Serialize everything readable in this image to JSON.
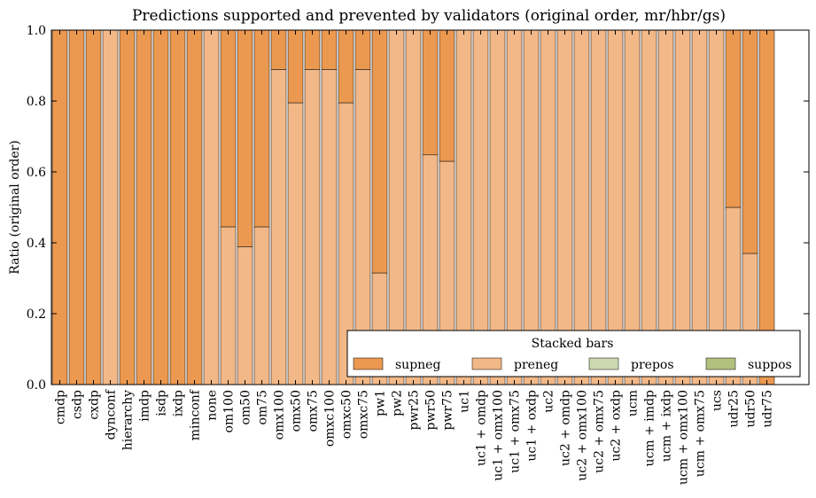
{
  "chart_data": {
    "type": "bar",
    "stacked": true,
    "title": "Predictions supported and prevented by validators (original order, mr/hbr/gs)",
    "xlabel": "",
    "ylabel": "Ratio (original order)",
    "ylim": [
      0,
      1.0
    ],
    "yticks": [
      "0.0",
      "0.2",
      "0.4",
      "0.6",
      "0.8",
      "1.0"
    ],
    "legend": {
      "title": "Stacked bars",
      "position": "bottom-right",
      "entries": [
        {
          "name": "supneg",
          "color": "#EB9950"
        },
        {
          "name": "preneg",
          "color": "#F2B887"
        },
        {
          "name": "prepos",
          "color": "#CCD9B0"
        },
        {
          "name": "suppos",
          "color": "#B2C07E"
        }
      ]
    },
    "categories": [
      "cmdp",
      "csdp",
      "cxdp",
      "dynconf",
      "hierarchy",
      "imdp",
      "isdp",
      "ixdp",
      "minconf",
      "none",
      "om100",
      "om50",
      "om75",
      "omx100",
      "omx50",
      "omx75",
      "omxc100",
      "omxc50",
      "omxc75",
      "pw1",
      "pw2",
      "pwr25",
      "pwr50",
      "pwr75",
      "uc1",
      "uc1 + omdp",
      "uc1 + omx100",
      "uc1 + omx75",
      "uc1 + oxdp",
      "uc2",
      "uc2 + omdp",
      "uc2 + omx100",
      "uc2 + omx75",
      "uc2 + oxdp",
      "ucm",
      "ucm + imdp",
      "ucm + ixdp",
      "ucm + omx100",
      "ucm + omx75",
      "ucs",
      "udr25",
      "udr50",
      "udr75"
    ],
    "series": [
      {
        "name": "preneg",
        "color": "#F2B887",
        "values": [
          0,
          0,
          0,
          1.0,
          0,
          0,
          0,
          0,
          0,
          1.0,
          0.445,
          0.389,
          0.445,
          0.889,
          0.795,
          0.889,
          0.889,
          0.795,
          0.889,
          0.315,
          1.0,
          1.0,
          0.648,
          0.63,
          1.0,
          1.0,
          1.0,
          1.0,
          1.0,
          1.0,
          1.0,
          1.0,
          1.0,
          1.0,
          1.0,
          1.0,
          1.0,
          1.0,
          1.0,
          1.0,
          0.5,
          0.37,
          0
        ]
      },
      {
        "name": "supneg",
        "color": "#EB9950",
        "values": [
          1.0,
          1.0,
          1.0,
          0,
          1.0,
          1.0,
          1.0,
          1.0,
          1.0,
          0,
          0.555,
          0.611,
          0.555,
          0.111,
          0.205,
          0.111,
          0.111,
          0.205,
          0.111,
          0.685,
          0,
          0,
          0.352,
          0.37,
          0,
          0,
          0,
          0,
          0,
          0,
          0,
          0,
          0,
          0,
          0,
          0,
          0,
          0,
          0,
          0,
          0.5,
          0.63,
          1.0
        ]
      },
      {
        "name": "prepos",
        "color": "#CCD9B0",
        "values": [
          0,
          0,
          0,
          0,
          0,
          0,
          0,
          0,
          0,
          0,
          0,
          0,
          0,
          0,
          0,
          0,
          0,
          0,
          0,
          0,
          0,
          0,
          0,
          0,
          0,
          0,
          0,
          0,
          0,
          0,
          0,
          0,
          0,
          0,
          0,
          0,
          0,
          0,
          0,
          0,
          0,
          0,
          0
        ]
      },
      {
        "name": "suppos",
        "color": "#B2C07E",
        "values": [
          0,
          0,
          0,
          0,
          0,
          0,
          0,
          0,
          0,
          0,
          0,
          0,
          0,
          0,
          0,
          0,
          0,
          0,
          0,
          0,
          0,
          0,
          0,
          0,
          0,
          0,
          0,
          0,
          0,
          0,
          0,
          0,
          0,
          0,
          0,
          0,
          0,
          0,
          0,
          0,
          0,
          0,
          0
        ]
      }
    ],
    "grid": false
  }
}
